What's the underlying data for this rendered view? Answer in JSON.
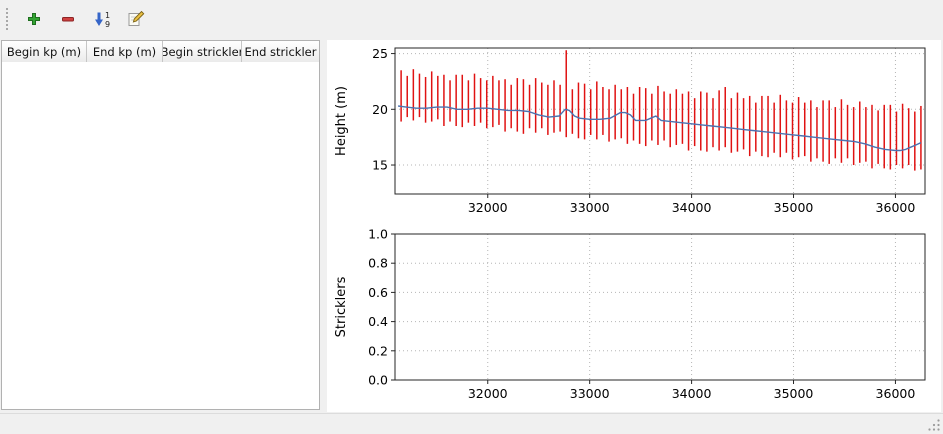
{
  "toolbar": {
    "buttons": [
      {
        "name": "add-row",
        "icon": "plus-icon"
      },
      {
        "name": "remove-row",
        "icon": "minus-icon"
      },
      {
        "name": "sort-rows",
        "icon": "sort-ascending-icon"
      },
      {
        "name": "edit-row",
        "icon": "edit-pencil-icon"
      }
    ]
  },
  "table": {
    "columns": [
      "Begin kp (m)",
      "End kp (m)",
      "Begin strickler",
      "End strickler"
    ],
    "rows": []
  },
  "colors": {
    "bar_red": "#e01212",
    "line_blue": "#4c72b0",
    "grid_gray": "#b5b5b5"
  },
  "chart_data": [
    {
      "type": "line",
      "title": "",
      "xlabel": "",
      "ylabel": "Height (m)",
      "xlim": [
        31090,
        36290
      ],
      "ylim": [
        12.4,
        25.5
      ],
      "xticks": [
        32000,
        33000,
        34000,
        35000,
        36000
      ],
      "xtick_labels": [
        "32000",
        "33000",
        "34000",
        "35000",
        "36000"
      ],
      "yticks": [
        15,
        20,
        25
      ],
      "ytick_labels": [
        "15",
        "20",
        "25"
      ],
      "grid": "dotted",
      "legend": "none",
      "series": [
        {
          "name": "section-minmax-bars",
          "kind": "bars",
          "color": "#e01212",
          "points": [
            [
              31150,
              18.9,
              23.5
            ],
            [
              31210,
              19.3,
              23.0
            ],
            [
              31270,
              19.0,
              23.6
            ],
            [
              31330,
              19.3,
              23.2
            ],
            [
              31390,
              18.8,
              22.9
            ],
            [
              31450,
              18.9,
              23.4
            ],
            [
              31510,
              19.1,
              23.0
            ],
            [
              31570,
              18.5,
              23.1
            ],
            [
              31630,
              18.9,
              22.6
            ],
            [
              31690,
              18.5,
              23.1
            ],
            [
              31750,
              18.4,
              23.1
            ],
            [
              31810,
              18.8,
              22.6
            ],
            [
              31870,
              18.5,
              23.2
            ],
            [
              31930,
              18.8,
              22.8
            ],
            [
              31990,
              18.3,
              22.6
            ],
            [
              32050,
              18.4,
              23.0
            ],
            [
              32110,
              18.6,
              22.6
            ],
            [
              32170,
              18.0,
              22.7
            ],
            [
              32230,
              18.3,
              22.2
            ],
            [
              32290,
              18.0,
              22.8
            ],
            [
              32350,
              17.8,
              22.7
            ],
            [
              32410,
              18.3,
              22.2
            ],
            [
              32470,
              17.9,
              22.8
            ],
            [
              32530,
              18.3,
              22.4
            ],
            [
              32590,
              17.7,
              22.2
            ],
            [
              32650,
              17.9,
              22.6
            ],
            [
              32710,
              18.0,
              22.2
            ],
            [
              32770,
              17.5,
              25.3
            ],
            [
              32830,
              17.8,
              21.8
            ],
            [
              32890,
              17.4,
              22.4
            ],
            [
              32950,
              17.3,
              22.3
            ],
            [
              33010,
              17.7,
              21.8
            ],
            [
              33070,
              17.3,
              22.5
            ],
            [
              33130,
              17.7,
              22.0
            ],
            [
              33190,
              17.1,
              21.8
            ],
            [
              33250,
              17.3,
              22.2
            ],
            [
              33310,
              17.4,
              21.8
            ],
            [
              33370,
              16.9,
              22.0
            ],
            [
              33430,
              17.2,
              21.4
            ],
            [
              33490,
              16.9,
              22.0
            ],
            [
              33550,
              16.7,
              21.9
            ],
            [
              33610,
              17.2,
              21.4
            ],
            [
              33670,
              16.8,
              22.1
            ],
            [
              33730,
              17.2,
              21.6
            ],
            [
              33790,
              16.6,
              21.4
            ],
            [
              33850,
              16.8,
              21.8
            ],
            [
              33910,
              16.9,
              21.4
            ],
            [
              33970,
              16.3,
              21.6
            ],
            [
              34030,
              16.7,
              21.0
            ],
            [
              34090,
              16.3,
              21.6
            ],
            [
              34150,
              16.2,
              21.5
            ],
            [
              34210,
              16.6,
              21.0
            ],
            [
              34270,
              16.3,
              21.7
            ],
            [
              34330,
              16.6,
              22.0
            ],
            [
              34390,
              16.1,
              21.0
            ],
            [
              34450,
              16.2,
              21.5
            ],
            [
              34510,
              16.4,
              21.0
            ],
            [
              34570,
              15.8,
              21.2
            ],
            [
              34630,
              16.2,
              20.6
            ],
            [
              34690,
              15.8,
              21.2
            ],
            [
              34750,
              15.7,
              21.2
            ],
            [
              34810,
              16.1,
              20.6
            ],
            [
              34870,
              15.7,
              21.3
            ],
            [
              34930,
              16.1,
              20.8
            ],
            [
              34990,
              15.5,
              20.6
            ],
            [
              35050,
              15.7,
              21.1
            ],
            [
              35110,
              15.8,
              20.6
            ],
            [
              35170,
              15.3,
              20.8
            ],
            [
              35230,
              15.6,
              20.2
            ],
            [
              35290,
              15.3,
              20.8
            ],
            [
              35350,
              15.1,
              20.8
            ],
            [
              35410,
              15.6,
              20.2
            ],
            [
              35470,
              15.2,
              20.9
            ],
            [
              35530,
              15.6,
              20.4
            ],
            [
              35590,
              15.0,
              20.2
            ],
            [
              35650,
              15.2,
              20.7
            ],
            [
              35710,
              15.3,
              20.2
            ],
            [
              35770,
              14.7,
              20.4
            ],
            [
              35830,
              15.1,
              19.9
            ],
            [
              35890,
              14.7,
              20.4
            ],
            [
              35950,
              14.6,
              20.4
            ],
            [
              36010,
              15.0,
              19.8
            ],
            [
              36070,
              14.7,
              20.5
            ],
            [
              36130,
              15.0,
              20.1
            ],
            [
              36190,
              14.5,
              19.8
            ],
            [
              36250,
              14.6,
              20.3
            ]
          ]
        },
        {
          "name": "water-level-line",
          "kind": "line",
          "color": "#4c72b0",
          "points": [
            [
              31120,
              20.3
            ],
            [
              31200,
              20.2
            ],
            [
              31300,
              20.1
            ],
            [
              31400,
              20.1
            ],
            [
              31500,
              20.2
            ],
            [
              31600,
              20.2
            ],
            [
              31700,
              20.0
            ],
            [
              31800,
              20.0
            ],
            [
              31900,
              20.1
            ],
            [
              32000,
              20.1
            ],
            [
              32100,
              20.0
            ],
            [
              32200,
              19.9
            ],
            [
              32300,
              19.9
            ],
            [
              32400,
              19.8
            ],
            [
              32500,
              19.5
            ],
            [
              32600,
              19.3
            ],
            [
              32700,
              19.4
            ],
            [
              32760,
              20.0
            ],
            [
              32800,
              19.9
            ],
            [
              32850,
              19.4
            ],
            [
              32900,
              19.2
            ],
            [
              33000,
              19.1
            ],
            [
              33100,
              19.1
            ],
            [
              33200,
              19.2
            ],
            [
              33300,
              19.7
            ],
            [
              33350,
              19.7
            ],
            [
              33400,
              19.5
            ],
            [
              33450,
              19.0
            ],
            [
              33550,
              19.0
            ],
            [
              33600,
              19.2
            ],
            [
              33650,
              19.4
            ],
            [
              33700,
              19.0
            ],
            [
              33800,
              18.9
            ],
            [
              33900,
              18.8
            ],
            [
              34000,
              18.7
            ],
            [
              34100,
              18.6
            ],
            [
              34200,
              18.5
            ],
            [
              34300,
              18.4
            ],
            [
              34400,
              18.3
            ],
            [
              34500,
              18.2
            ],
            [
              34600,
              18.1
            ],
            [
              34700,
              18.0
            ],
            [
              34800,
              17.9
            ],
            [
              34900,
              17.8
            ],
            [
              35000,
              17.7
            ],
            [
              35100,
              17.6
            ],
            [
              35200,
              17.5
            ],
            [
              35300,
              17.4
            ],
            [
              35400,
              17.3
            ],
            [
              35500,
              17.2
            ],
            [
              35600,
              17.1
            ],
            [
              35700,
              16.9
            ],
            [
              35800,
              16.6
            ],
            [
              35900,
              16.4
            ],
            [
              36000,
              16.3
            ],
            [
              36050,
              16.3
            ],
            [
              36100,
              16.4
            ],
            [
              36150,
              16.6
            ],
            [
              36200,
              16.8
            ],
            [
              36250,
              17.0
            ]
          ]
        }
      ]
    },
    {
      "type": "line",
      "title": "",
      "xlabel": "",
      "ylabel": "Stricklers",
      "xlim": [
        31090,
        36290
      ],
      "ylim": [
        0,
        1
      ],
      "xticks": [
        32000,
        33000,
        34000,
        35000,
        36000
      ],
      "xtick_labels": [
        "32000",
        "33000",
        "34000",
        "35000",
        "36000"
      ],
      "yticks": [
        0,
        0.2,
        0.4,
        0.6,
        0.8,
        1
      ],
      "ytick_labels": [
        "0.0",
        "0.2",
        "0.4",
        "0.6",
        "0.8",
        "1.0"
      ],
      "grid": "dotted",
      "legend": "none",
      "series": []
    }
  ]
}
